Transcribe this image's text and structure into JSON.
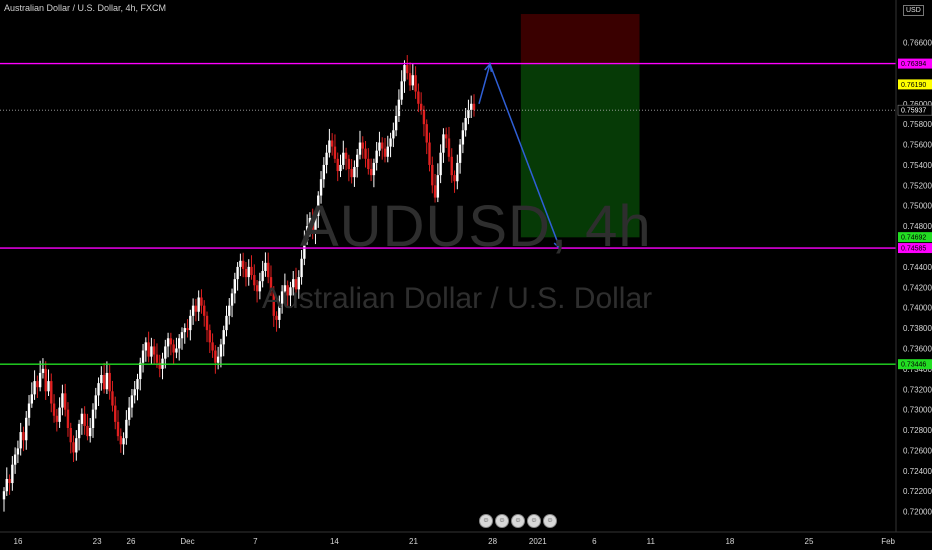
{
  "header": {
    "title": "Australian Dollar / U.S. Dollar, 4h, FXCM",
    "currency": "USD"
  },
  "watermark": {
    "symbol": "AUDUSD, 4h",
    "name": "Australian Dollar / U.S. Dollar"
  },
  "colors": {
    "background": "#000000",
    "up_candle": "#ffffff",
    "down_candle": "#e02020",
    "magenta_level": "#ff00ff",
    "green_level": "#22dd22",
    "stop_zone": "#3a0000",
    "target_zone": "#063a06",
    "arrow": "#2f5fd6"
  },
  "chart_data": {
    "type": "candlestick",
    "symbol": "AUDUSD",
    "timeframe": "4h",
    "y_range": [
      0.718,
      0.769
    ],
    "y_ticks": [
      0.72,
      0.722,
      0.724,
      0.726,
      0.728,
      0.73,
      0.732,
      0.734,
      0.736,
      0.738,
      0.74,
      0.742,
      0.744,
      0.746,
      0.748,
      0.75,
      0.752,
      0.754,
      0.756,
      0.758,
      0.76,
      0.762,
      0.764,
      0.766
    ],
    "x_ticks": [
      "16",
      "23",
      "26",
      "Dec",
      "7",
      "14",
      "21",
      "28",
      "2021",
      "6",
      "11",
      "18",
      "25",
      "Feb"
    ],
    "last_price": 0.75937,
    "levels": [
      {
        "label": "0.76394",
        "value": 0.76394,
        "color": "#ff00ff",
        "style": "solid"
      },
      {
        "label": "0.74585",
        "value": 0.74585,
        "color": "#ff00ff",
        "style": "solid"
      },
      {
        "label": "0.73446",
        "value": 0.73446,
        "color": "#22dd22",
        "style": "solid"
      },
      {
        "label": "0.75937",
        "value": 0.75937,
        "color": "#aaaaaa",
        "style": "dotted"
      }
    ],
    "price_tags": [
      {
        "label": "0.76394",
        "value": 0.76394,
        "bg": "#ff00ff",
        "fg": "#000000"
      },
      {
        "label": "0.76190",
        "value": 0.7619,
        "bg": "#ffff00",
        "fg": "#000000"
      },
      {
        "label": "0.75937",
        "value": 0.75937,
        "bg": "#000000",
        "fg": "#ffffff"
      },
      {
        "label": "0.74692",
        "value": 0.74692,
        "bg": "#22dd22",
        "fg": "#000000"
      },
      {
        "label": "0.74585",
        "value": 0.74585,
        "bg": "#ff00ff",
        "fg": "#000000"
      },
      {
        "label": "0.73446",
        "value": 0.73446,
        "bg": "#22dd22",
        "fg": "#000000"
      }
    ],
    "position": {
      "type": "short",
      "entry": 0.7639,
      "stop": 0.7688,
      "target": 0.7469
    },
    "projection": [
      {
        "x": "29 Dec",
        "y": 0.76
      },
      {
        "x": "30 Dec",
        "y": 0.7639
      },
      {
        "x": "5 Jan",
        "y": 0.7458
      }
    ],
    "candles_close": [
      0.722,
      0.7232,
      0.7228,
      0.7246,
      0.7256,
      0.7262,
      0.7278,
      0.727,
      0.7292,
      0.7306,
      0.7315,
      0.7328,
      0.7322,
      0.7336,
      0.734,
      0.7318,
      0.7328,
      0.7306,
      0.7294,
      0.7288,
      0.7302,
      0.7316,
      0.73,
      0.7282,
      0.7268,
      0.7258,
      0.7272,
      0.7286,
      0.7296,
      0.7284,
      0.7274,
      0.7282,
      0.73,
      0.7314,
      0.7326,
      0.7334,
      0.732,
      0.7336,
      0.7318,
      0.7304,
      0.7288,
      0.7274,
      0.7266,
      0.7272,
      0.729,
      0.7302,
      0.7314,
      0.732,
      0.733,
      0.7346,
      0.7358,
      0.7366,
      0.7352,
      0.7362,
      0.7354,
      0.7346,
      0.734,
      0.735,
      0.7362,
      0.737,
      0.7364,
      0.7356,
      0.736,
      0.737,
      0.7376,
      0.738,
      0.7378,
      0.7392,
      0.7402,
      0.7396,
      0.741,
      0.7402,
      0.7392,
      0.7378,
      0.7366,
      0.7358,
      0.7346,
      0.7352,
      0.7364,
      0.7378,
      0.7392,
      0.7402,
      0.7414,
      0.7428,
      0.744,
      0.7446,
      0.7438,
      0.743,
      0.744,
      0.7432,
      0.7422,
      0.7416,
      0.7426,
      0.7436,
      0.7444,
      0.743,
      0.7416,
      0.7392,
      0.7388,
      0.7404,
      0.7416,
      0.7422,
      0.7412,
      0.742,
      0.7428,
      0.7418,
      0.743,
      0.7448,
      0.7466,
      0.748,
      0.7488,
      0.7474,
      0.749,
      0.751,
      0.7526,
      0.754,
      0.7552,
      0.7564,
      0.7558,
      0.7546,
      0.7534,
      0.754,
      0.7552,
      0.7546,
      0.7536,
      0.7528,
      0.7538,
      0.755,
      0.7562,
      0.7556,
      0.7546,
      0.7536,
      0.753,
      0.7542,
      0.7554,
      0.7562,
      0.7556,
      0.7548,
      0.7558,
      0.7566,
      0.7574,
      0.7588,
      0.7604,
      0.7622,
      0.7638,
      0.763,
      0.7618,
      0.7628,
      0.7612,
      0.76,
      0.7594,
      0.758,
      0.7562,
      0.754,
      0.752,
      0.7508,
      0.753,
      0.7552,
      0.757,
      0.7566,
      0.7548,
      0.753,
      0.7524,
      0.7542,
      0.756,
      0.7574,
      0.7586,
      0.7594,
      0.76,
      0.7594
    ]
  },
  "footer_icons": [
    "news-icon-1",
    "news-icon-2",
    "news-icon-3",
    "news-icon-4",
    "news-icon-5"
  ]
}
